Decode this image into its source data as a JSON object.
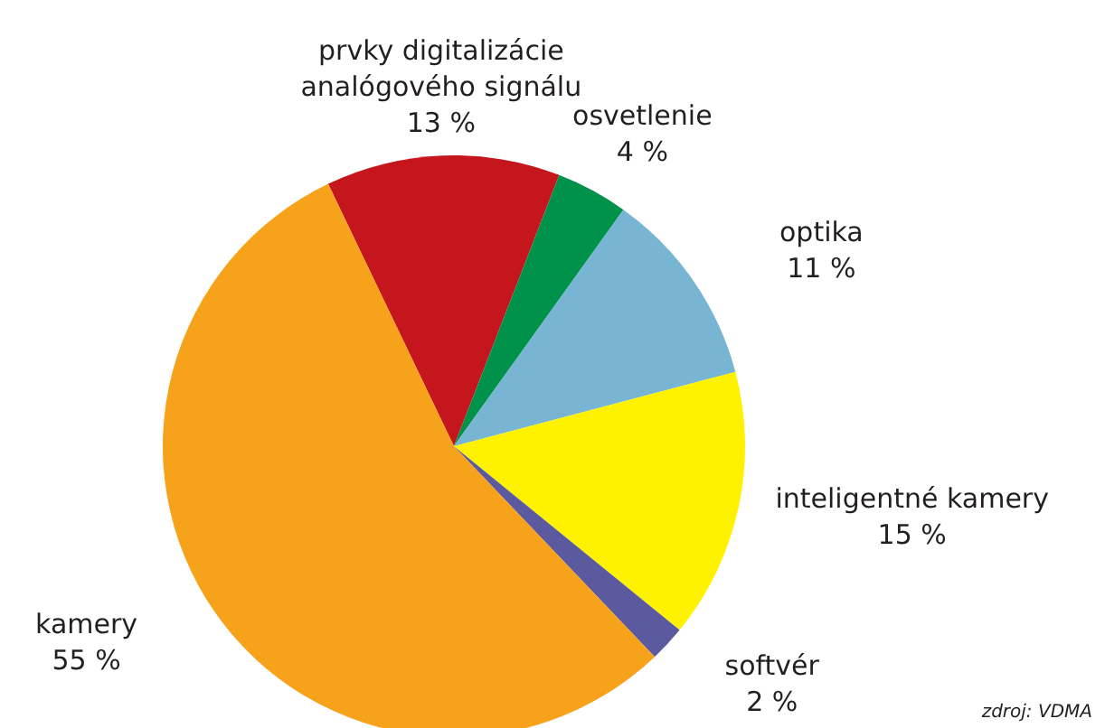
{
  "chart_data": {
    "type": "pie",
    "categories": [
      "prvky digitalizácie analógového signálu",
      "osvetlenie",
      "optika",
      "inteligentné kamery",
      "softvér",
      "kamery"
    ],
    "values": [
      13,
      4,
      11,
      15,
      2,
      55
    ],
    "colors": [
      "#c4161c",
      "#00924a",
      "#77b5d3",
      "#fff200",
      "#5c5a9e",
      "#f7a21b"
    ],
    "value_labels": [
      "13 %",
      "4 %",
      "11 %",
      "15 %",
      "2 %",
      "55 %"
    ],
    "annotations": [
      "zdroj: VDMA"
    ]
  }
}
